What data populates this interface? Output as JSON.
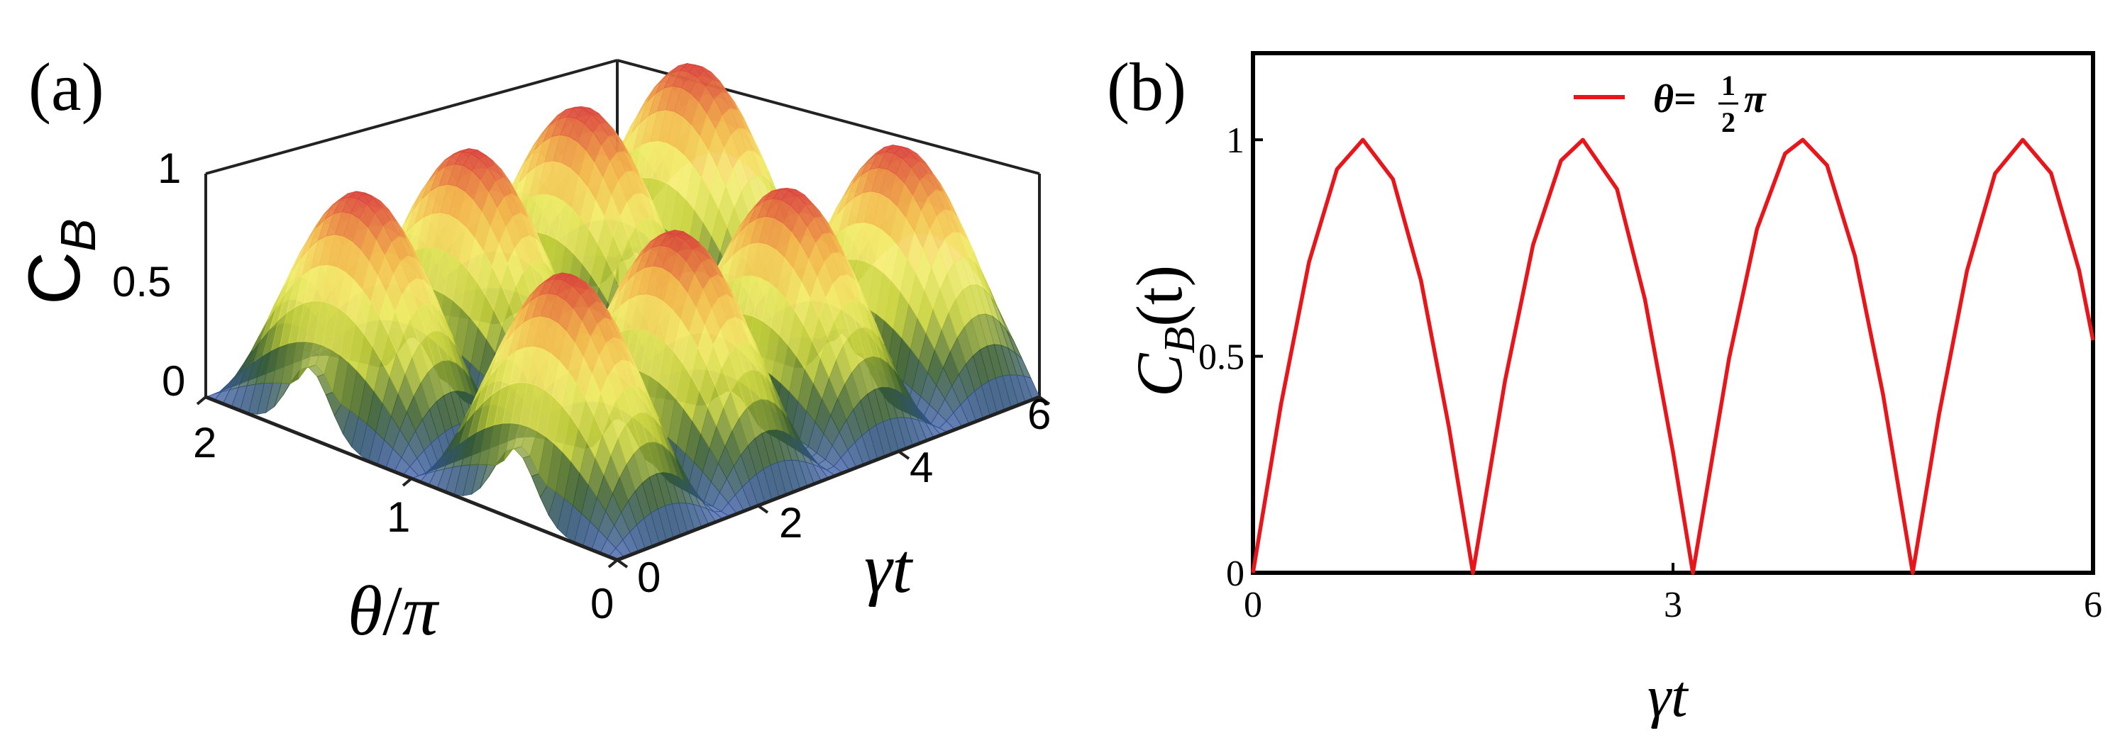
{
  "chart_data": [
    {
      "type": "surface",
      "panel_label": "(a)",
      "xlabel_var": "θ",
      "xlabel_unit": "π",
      "ylabel": "γt",
      "zlabel_main": "C",
      "zlabel_sub": "B",
      "x_ticks": [
        "0",
        "1",
        "2"
      ],
      "y_ticks": [
        "0",
        "2",
        "4",
        "6"
      ],
      "z_ticks": [
        "0",
        "0.5",
        "1"
      ],
      "xlim": [
        0,
        2
      ],
      "ylim": [
        0,
        6
      ],
      "zlim": [
        0,
        1
      ],
      "colormap": [
        "#2c4f9e",
        "#355a2a",
        "#c7d23a",
        "#f6ef72",
        "#f2b24a",
        "#d83a3a"
      ],
      "surface_model": "C_B(theta, t) = |sin(theta * pi)| * |sin(2 * t)| with broader side ridges near theta = 1/2 and 3/2"
    },
    {
      "type": "line",
      "panel_label": "(b)",
      "xlabel": "γt",
      "ylabel_main": "C",
      "ylabel_sub": "B",
      "ylabel_tail": "(t)",
      "xlim": [
        0,
        6
      ],
      "ylim": [
        0,
        1.2
      ],
      "x_ticks": [
        "0",
        "3",
        "6"
      ],
      "y_ticks": [
        "0",
        "0.5",
        "1"
      ],
      "legend_position": "top-center",
      "series": [
        {
          "name_var": "θ",
          "name_eq": "=",
          "name_num": "1",
          "name_den": "2",
          "name_pi": "π",
          "color": "#e8161b",
          "x": [
            0,
            0.2,
            0.4,
            0.6,
            0.785,
            1.0,
            1.2,
            1.4,
            1.571,
            1.8,
            2.0,
            2.2,
            2.356,
            2.6,
            2.8,
            3.0,
            3.142,
            3.4,
            3.6,
            3.8,
            3.927,
            4.1,
            4.3,
            4.5,
            4.712,
            4.9,
            5.1,
            5.3,
            5.498,
            5.7,
            5.9,
            6.0
          ],
          "y": [
            0,
            0.389,
            0.717,
            0.932,
            1.0,
            0.909,
            0.675,
            0.335,
            0,
            0.443,
            0.757,
            0.952,
            1.0,
            0.886,
            0.631,
            0.279,
            0,
            0.494,
            0.794,
            0.968,
            1.0,
            0.941,
            0.731,
            0.412,
            0,
            0.365,
            0.698,
            0.922,
            1.0,
            0.923,
            0.699,
            0.537
          ]
        }
      ]
    }
  ]
}
